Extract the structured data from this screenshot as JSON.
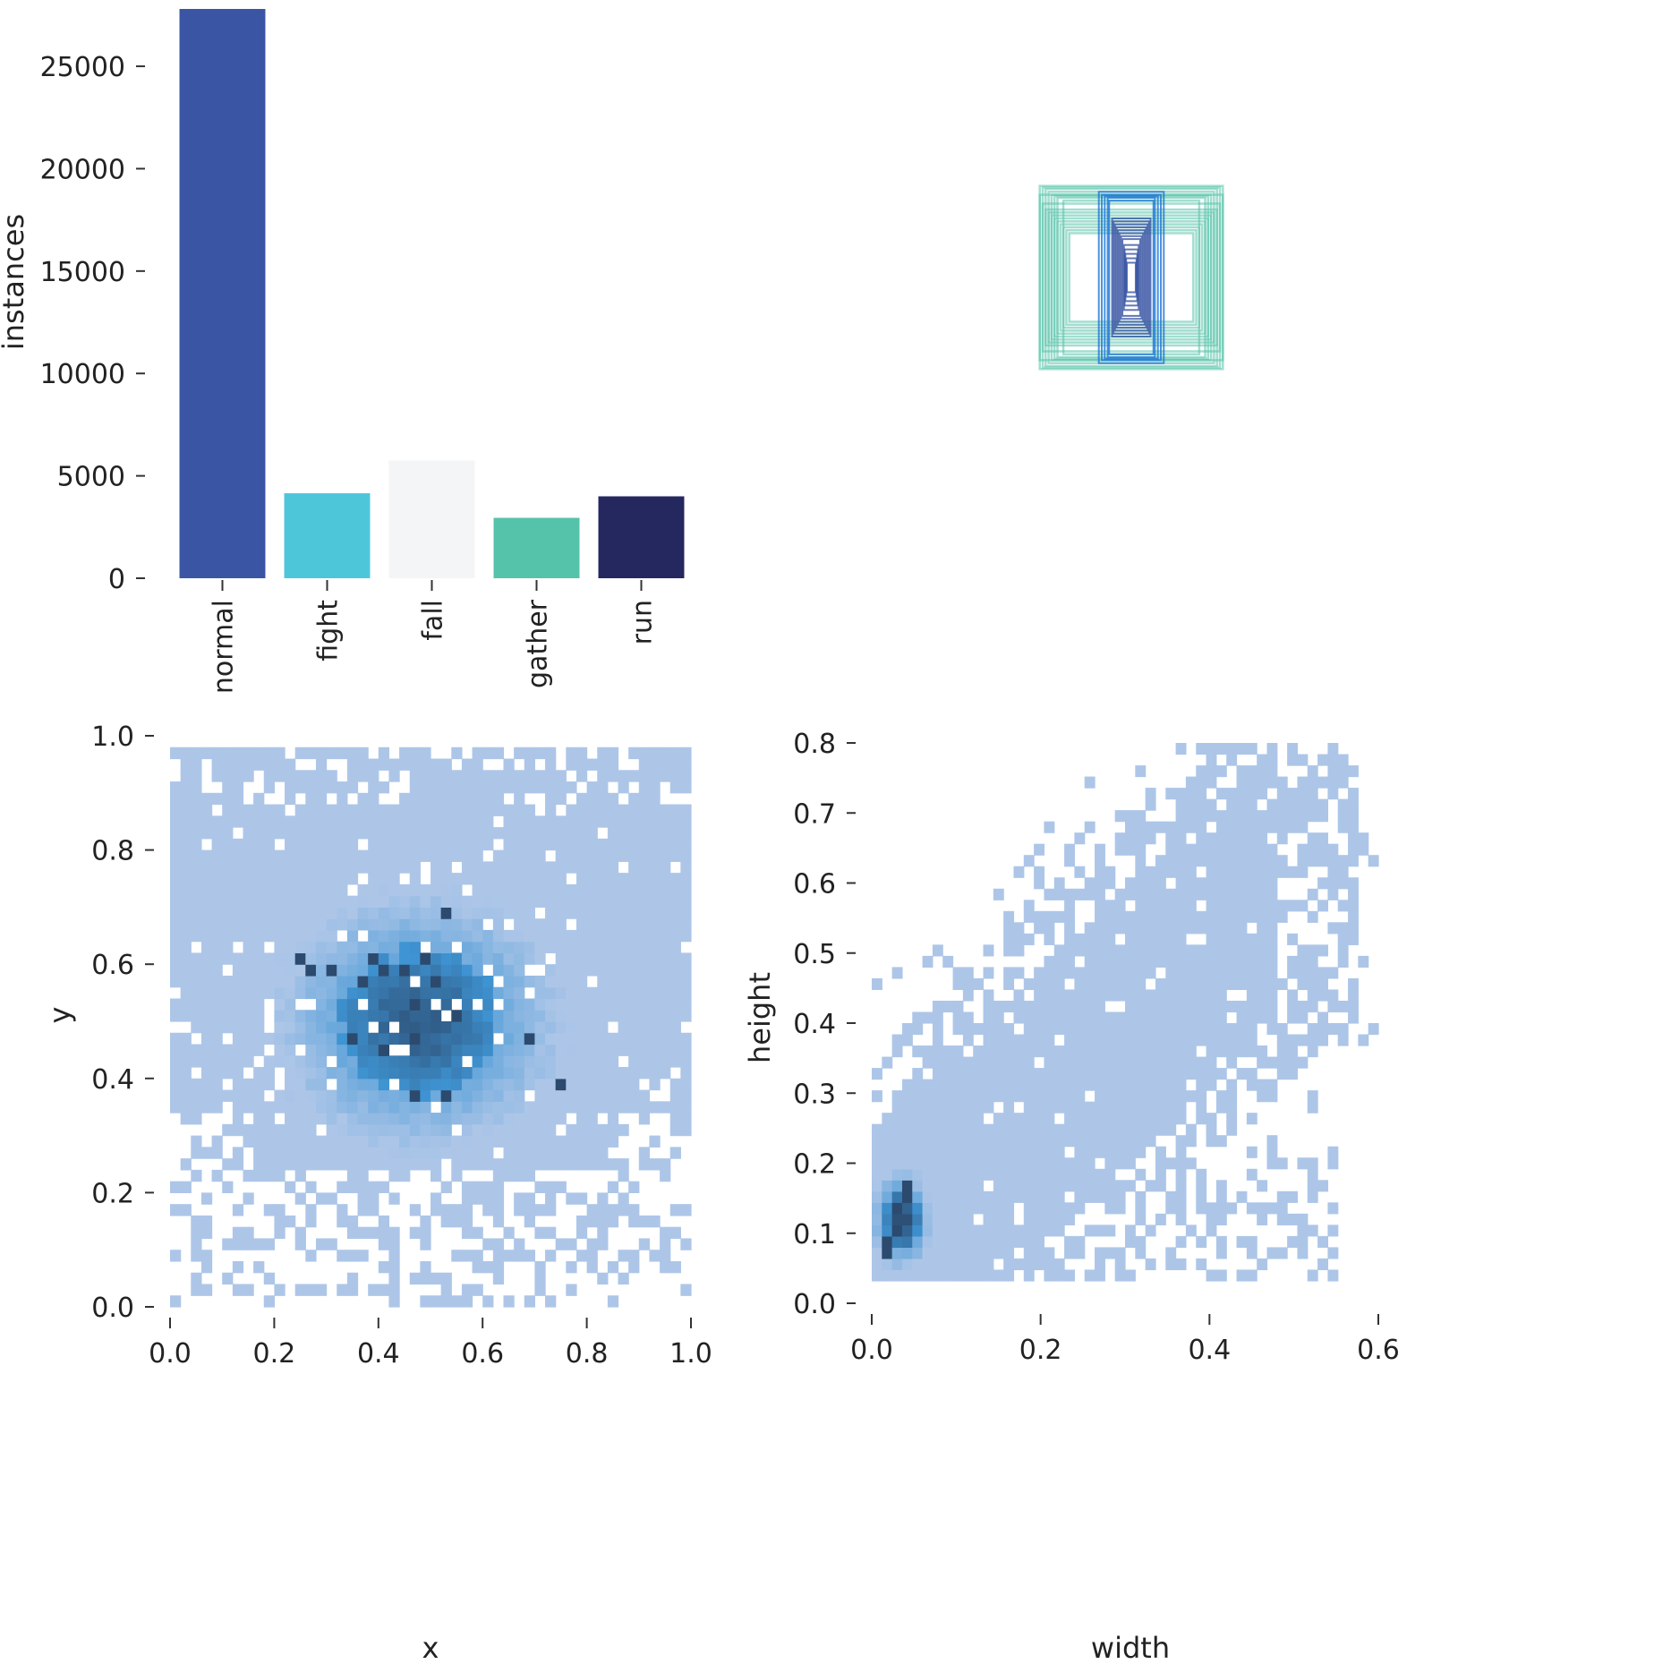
{
  "chart_data": [
    {
      "type": "bar",
      "ylabel": "instances",
      "xlabel": "",
      "categories": [
        "normal",
        "fight",
        "fall",
        "gather",
        "run"
      ],
      "values": [
        27800,
        4150,
        5750,
        2950,
        4000
      ],
      "colors": [
        "#3a55a4",
        "#4ec6da",
        "#f4f5f7",
        "#55c2aa",
        "#25275f"
      ],
      "ylim": [
        0,
        27800
      ],
      "yticks": [
        0,
        5000,
        10000,
        15000,
        20000,
        25000
      ],
      "grid": false
    },
    {
      "type": "scatter",
      "description_kind": "box-overlay",
      "xlim": [
        0,
        1
      ],
      "ylim": [
        0,
        1
      ],
      "boxes": [
        {
          "w": 0.62,
          "h": 0.62,
          "color": "#55c2aa"
        },
        {
          "w": 0.6,
          "h": 0.61,
          "color": "#55c2aa"
        },
        {
          "w": 0.58,
          "h": 0.6,
          "color": "#55c2aa"
        },
        {
          "w": 0.56,
          "h": 0.58,
          "color": "#55c2aa"
        },
        {
          "w": 0.54,
          "h": 0.56,
          "color": "#55c2aa"
        },
        {
          "w": 0.52,
          "h": 0.55,
          "color": "#55c2aa"
        },
        {
          "w": 0.5,
          "h": 0.54,
          "color": "#55c2aa"
        },
        {
          "w": 0.46,
          "h": 0.52,
          "color": "#55c2aa"
        },
        {
          "w": 0.62,
          "h": 0.56,
          "color": "#55c2aa"
        },
        {
          "w": 0.6,
          "h": 0.5,
          "color": "#55c2aa"
        },
        {
          "w": 0.58,
          "h": 0.46,
          "color": "#55c2aa"
        },
        {
          "w": 0.56,
          "h": 0.44,
          "color": "#55c2aa"
        },
        {
          "w": 0.54,
          "h": 0.42,
          "color": "#55c2aa"
        },
        {
          "w": 0.52,
          "h": 0.4,
          "color": "#55c2aa"
        },
        {
          "w": 0.5,
          "h": 0.38,
          "color": "#55c2aa"
        },
        {
          "w": 0.48,
          "h": 0.36,
          "color": "#55c2aa"
        },
        {
          "w": 0.46,
          "h": 0.34,
          "color": "#55c2aa"
        },
        {
          "w": 0.44,
          "h": 0.32,
          "color": "#55c2aa"
        },
        {
          "w": 0.42,
          "h": 0.3,
          "color": "#55c2aa"
        },
        {
          "w": 0.22,
          "h": 0.58,
          "color": "#1f77d6"
        },
        {
          "w": 0.2,
          "h": 0.56,
          "color": "#1f77d6"
        },
        {
          "w": 0.18,
          "h": 0.55,
          "color": "#1f77d6"
        },
        {
          "w": 0.16,
          "h": 0.54,
          "color": "#1f77d6"
        },
        {
          "w": 0.15,
          "h": 0.52,
          "color": "#1f77d6"
        },
        {
          "w": 0.13,
          "h": 0.4,
          "color": "#3a55a4"
        },
        {
          "w": 0.12,
          "h": 0.38,
          "color": "#3a55a4"
        },
        {
          "w": 0.11,
          "h": 0.36,
          "color": "#3a55a4"
        },
        {
          "w": 0.1,
          "h": 0.34,
          "color": "#3a55a4"
        },
        {
          "w": 0.09,
          "h": 0.32,
          "color": "#3a55a4"
        },
        {
          "w": 0.08,
          "h": 0.3,
          "color": "#3a55a4"
        },
        {
          "w": 0.07,
          "h": 0.28,
          "color": "#3a55a4"
        },
        {
          "w": 0.06,
          "h": 0.26,
          "color": "#3a55a4"
        },
        {
          "w": 0.05,
          "h": 0.22,
          "color": "#3a55a4"
        },
        {
          "w": 0.045,
          "h": 0.19,
          "color": "#3a55a4"
        },
        {
          "w": 0.04,
          "h": 0.16,
          "color": "#3a55a4"
        },
        {
          "w": 0.035,
          "h": 0.13,
          "color": "#3a55a4"
        },
        {
          "w": 0.03,
          "h": 0.1,
          "color": "#3a55a4"
        }
      ]
    },
    {
      "type": "heatmap",
      "xlabel": "x",
      "ylabel": "y",
      "xlim": [
        0,
        1
      ],
      "ylim": [
        0,
        1
      ],
      "xticks": [
        0.0,
        0.2,
        0.4,
        0.6,
        0.8,
        1.0
      ],
      "yticks": [
        0.0,
        0.2,
        0.4,
        0.6,
        0.8,
        1.0
      ],
      "xtick_labels": [
        "0.0",
        "0.2",
        "0.4",
        "0.6",
        "0.8",
        "1.0"
      ],
      "ytick_labels": [
        "0.0",
        "0.2",
        "0.4",
        "0.6",
        "0.8",
        "1.0"
      ],
      "bins": 50,
      "density": {
        "cx": 0.5,
        "cy": 0.5,
        "sx": 0.3,
        "sy": 0.3
      },
      "hotspots": [
        {
          "x": 0.24,
          "y": 0.61
        },
        {
          "x": 0.27,
          "y": 0.59
        },
        {
          "x": 0.3,
          "y": 0.59
        },
        {
          "x": 0.36,
          "y": 0.58
        },
        {
          "x": 0.38,
          "y": 0.6
        },
        {
          "x": 0.41,
          "y": 0.59
        },
        {
          "x": 0.44,
          "y": 0.59
        },
        {
          "x": 0.48,
          "y": 0.6
        },
        {
          "x": 0.5,
          "y": 0.58
        },
        {
          "x": 0.53,
          "y": 0.69
        },
        {
          "x": 0.5,
          "y": 0.52
        },
        {
          "x": 0.46,
          "y": 0.52
        },
        {
          "x": 0.47,
          "y": 0.46
        },
        {
          "x": 0.52,
          "y": 0.5
        },
        {
          "x": 0.54,
          "y": 0.51
        },
        {
          "x": 0.47,
          "y": 0.37
        },
        {
          "x": 0.52,
          "y": 0.37
        },
        {
          "x": 0.69,
          "y": 0.46
        },
        {
          "x": 0.75,
          "y": 0.38
        },
        {
          "x": 0.35,
          "y": 0.47
        },
        {
          "x": 0.4,
          "y": 0.44
        }
      ],
      "colors": {
        "light": "#adc6e8",
        "mid": "#3f95d4",
        "dark": "#2c4a6e"
      }
    },
    {
      "type": "heatmap",
      "xlabel": "width",
      "ylabel": "height",
      "xlim": [
        0,
        0.6
      ],
      "ylim": [
        0,
        0.8
      ],
      "xticks": [
        0.0,
        0.2,
        0.4,
        0.6
      ],
      "yticks": [
        0.0,
        0.1,
        0.2,
        0.3,
        0.4,
        0.5,
        0.6,
        0.7,
        0.8
      ],
      "xtick_labels": [
        "0.0",
        "0.2",
        "0.4",
        "0.6"
      ],
      "ytick_labels": [
        "0.0",
        "0.1",
        "0.2",
        "0.3",
        "0.4",
        "0.5",
        "0.6",
        "0.7",
        "0.8"
      ],
      "bins": 50,
      "hotspots": [
        {
          "x": 0.03,
          "y": 0.11
        },
        {
          "x": 0.03,
          "y": 0.13
        },
        {
          "x": 0.04,
          "y": 0.15
        },
        {
          "x": 0.02,
          "y": 0.09
        },
        {
          "x": 0.04,
          "y": 0.17
        },
        {
          "x": 0.02,
          "y": 0.07
        }
      ],
      "colors": {
        "light": "#adc6e8",
        "mid": "#3f95d4",
        "dark": "#2c4a6e"
      }
    }
  ]
}
